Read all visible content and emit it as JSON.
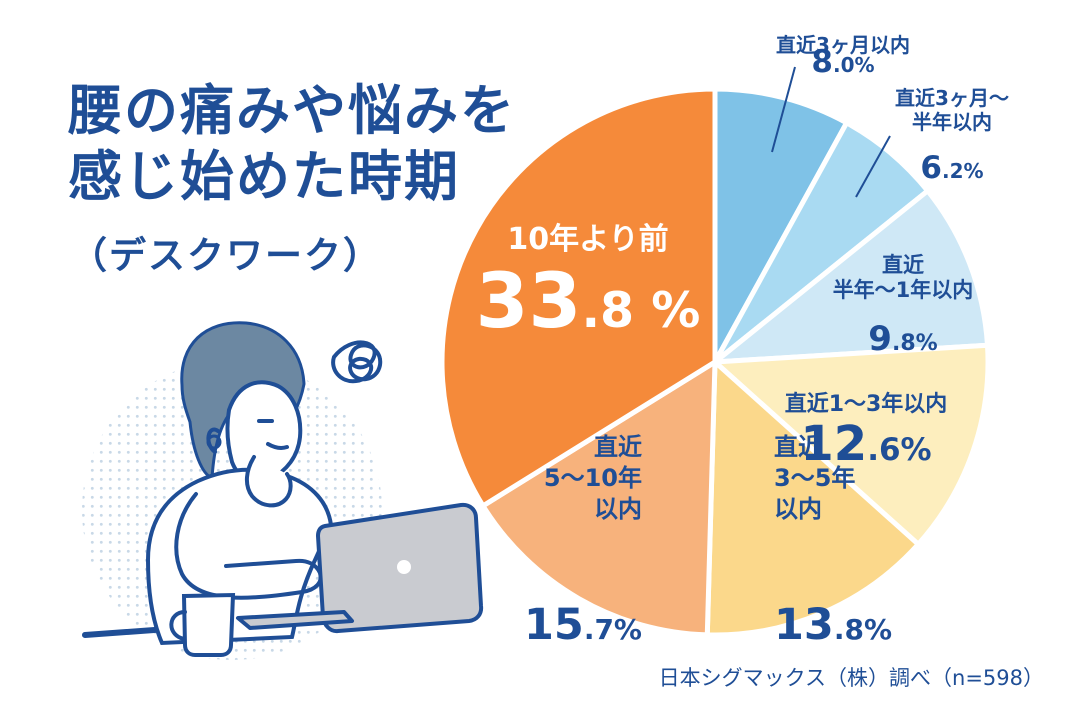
{
  "title_line_1": "腰の痛みや悩みを",
  "title_line_2": "感じ始めた時期",
  "subtitle": "（デスクワーク）",
  "source_note": "日本シグマックス（株）調べ（n=598）",
  "chart_data": {
    "type": "pie",
    "title": "腰の痛みや悩みを感じ始めた時期",
    "subtitle": "（デスクワーク）",
    "start_angle_deg": 0,
    "direction": "clockwise",
    "slices": [
      {
        "label": "直近3ヶ月以内",
        "label_lines": [
          "直近3ヶ月以内"
        ],
        "value": 8.0,
        "value_label": "8.0%",
        "value_int": "8",
        "value_rest": ".0%",
        "fill": "#7fc2e7",
        "text_color": "#1f4e96"
      },
      {
        "label": "直近3ヶ月〜半年以内",
        "label_lines": [
          "直近3ヶ月〜",
          "半年以内"
        ],
        "value": 6.2,
        "value_label": "6.2%",
        "value_int": "6",
        "value_rest": ".2%",
        "fill": "#a9daf2",
        "text_color": "#1f4e96"
      },
      {
        "label": "直近半年〜1年以内",
        "label_lines": [
          "直近",
          "半年〜1年以内"
        ],
        "value": 9.8,
        "value_label": "9.8%",
        "value_int": "9",
        "value_rest": ".8%",
        "fill": "#cfe8f6",
        "text_color": "#1f4e96"
      },
      {
        "label": "直近1〜3年以内",
        "label_lines": [
          "直近1〜3年以内"
        ],
        "value": 12.6,
        "value_label": "12.6%",
        "value_int": "12",
        "value_rest": ".6%",
        "fill": "#fdeebe",
        "text_color": "#1f4e96"
      },
      {
        "label": "直近3〜5年以内",
        "label_lines": [
          "直近",
          "3〜5年",
          "以内"
        ],
        "value": 13.8,
        "value_label": "13.8%",
        "value_int": "13",
        "value_rest": ".8%",
        "fill": "#fbd88b",
        "text_color": "#1f4e96"
      },
      {
        "label": "直近5〜10年以内",
        "label_lines": [
          "直近",
          "5〜10年",
          "以内"
        ],
        "value": 15.7,
        "value_label": "15.7%",
        "value_int": "15",
        "value_rest": ".7%",
        "fill": "#f7b27c",
        "text_color": "#1f4e96"
      },
      {
        "label": "10年より前",
        "label_lines": [
          "10年より前"
        ],
        "value": 33.8,
        "value_label": "33.8%",
        "value_int": "33",
        "value_rest": ".8 %",
        "fill": "#f58a3a",
        "text_color": "#ffffff"
      }
    ]
  },
  "colors": {
    "title_text": "#1f4e96",
    "source_text": "#1f4e96",
    "pie_border": "#ffffff",
    "leader_line": "#1f4e96",
    "illustration_line": "#1f4e96",
    "illustration_hair": "#6c88a2",
    "illustration_laptop": "#c9cbd0",
    "illustration_dots": "#c5d6e6"
  }
}
